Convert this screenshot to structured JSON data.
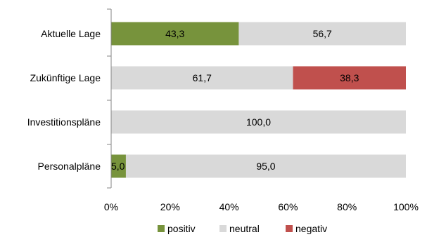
{
  "chart_data": {
    "type": "bar",
    "orientation": "horizontal",
    "stacked": true,
    "categories": [
      "Aktuelle Lage",
      "Zukünftige Lage",
      "Investitionspläne",
      "Personalpläne"
    ],
    "series": [
      {
        "name": "positiv",
        "color": "#77933C",
        "values": [
          43.3,
          0,
          0,
          5.0
        ],
        "labels": [
          "43,3",
          "",
          "",
          "5,0"
        ]
      },
      {
        "name": "neutral",
        "color": "#D9D9D9",
        "values": [
          56.7,
          61.7,
          100.0,
          95.0
        ],
        "labels": [
          "56,7",
          "61,7",
          "100,0",
          "95,0"
        ]
      },
      {
        "name": "negativ",
        "color": "#C0504D",
        "values": [
          0,
          38.3,
          0,
          0
        ],
        "labels": [
          "",
          "38,3",
          "",
          ""
        ]
      }
    ],
    "xlim": [
      0,
      100
    ],
    "x_ticks": [
      "0%",
      "20%",
      "40%",
      "60%",
      "80%",
      "100%"
    ],
    "grid": false,
    "legend_position": "bottom",
    "title": "",
    "xlabel": "",
    "ylabel": ""
  }
}
